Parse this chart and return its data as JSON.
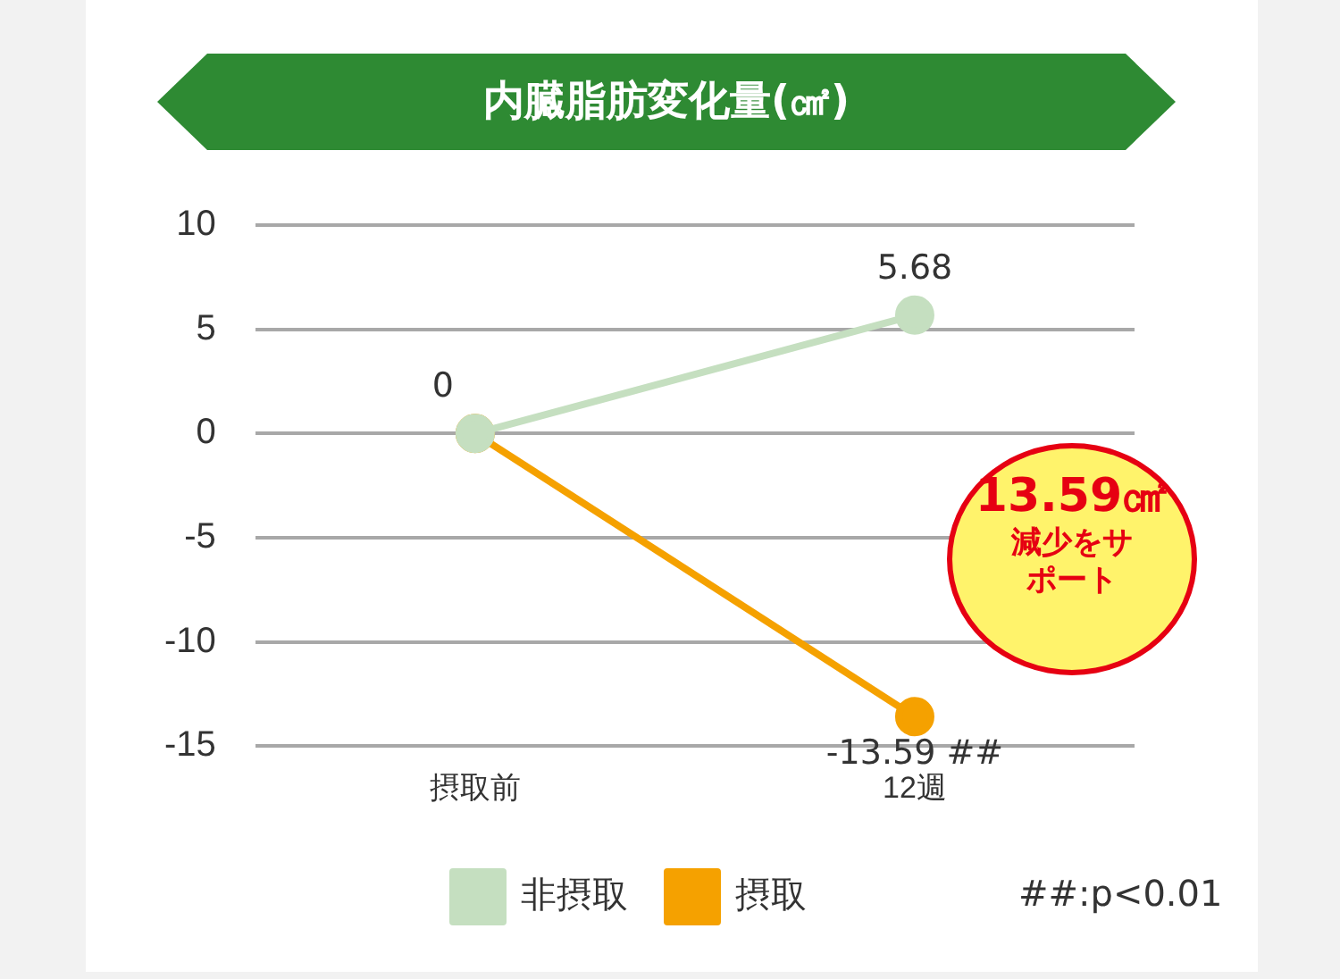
{
  "chart_data": {
    "type": "line",
    "title": "内臓脂肪変化量(㎠)",
    "categories": [
      "摂取前",
      "12週"
    ],
    "series": [
      {
        "name": "非摂取",
        "color": "#c5dfc0",
        "values": [
          0,
          5.68
        ],
        "value_labels": [
          null,
          "5.68"
        ]
      },
      {
        "name": "摂取",
        "color": "#f5a100",
        "values": [
          0,
          -13.59
        ],
        "value_labels": [
          "0",
          "-13.59 ##"
        ]
      }
    ],
    "ylim": [
      -15,
      10
    ],
    "yticks": [
      -15,
      -10,
      -5,
      0,
      5,
      10
    ],
    "grid": "y",
    "legend": "bottom",
    "marker": "circle",
    "line_style": "solid",
    "annotations": [
      "13.59㎠",
      "減少をサポート",
      "##:p<0.01"
    ]
  }
}
